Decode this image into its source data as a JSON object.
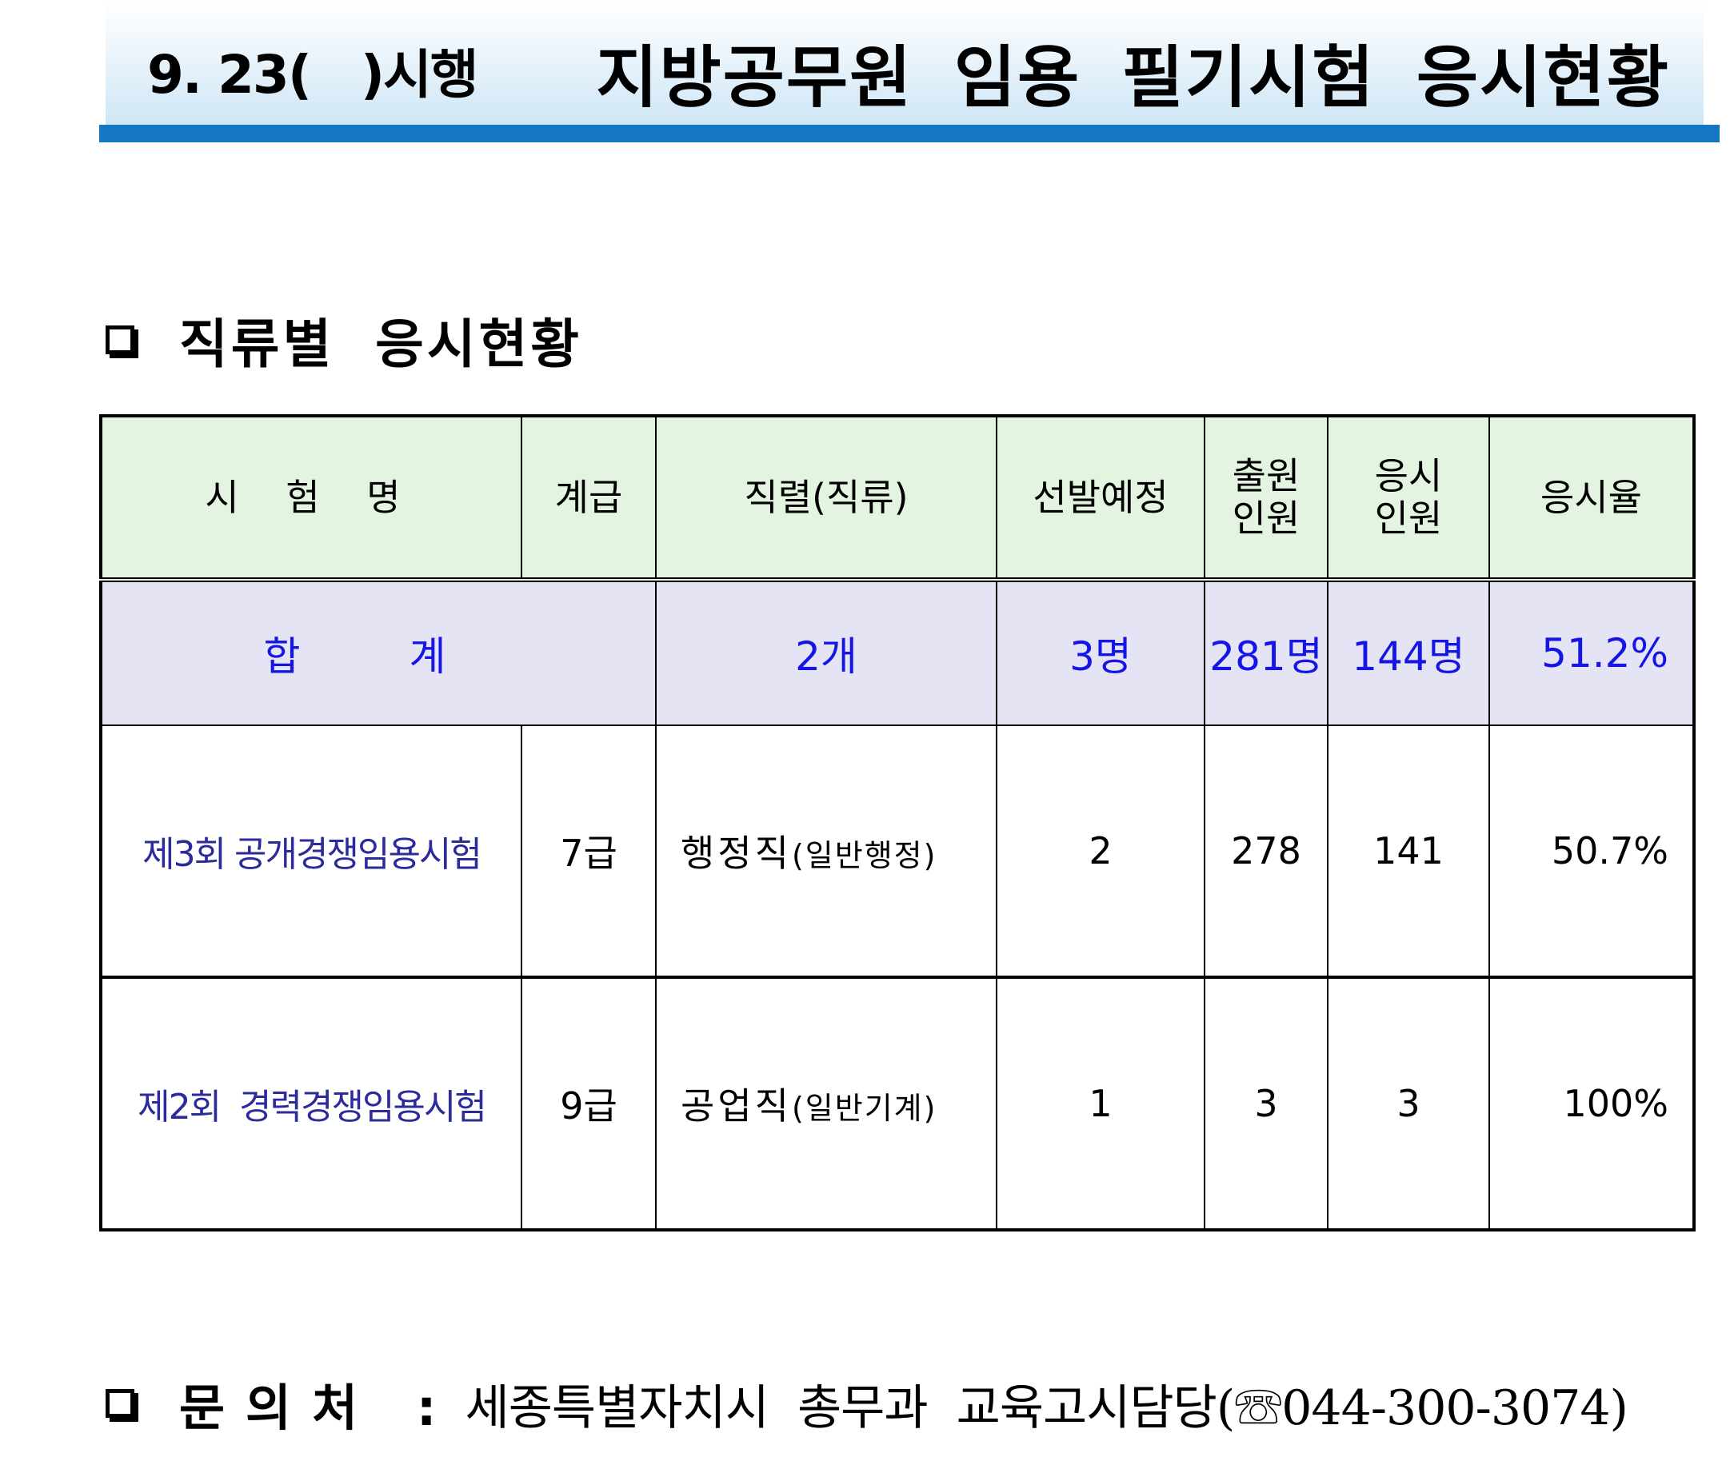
{
  "header": {
    "date": "9. 23(   )시행",
    "title": "지방공무원 임용 필기시험 응시현황"
  },
  "section": {
    "title": "직류별 응시현황"
  },
  "table": {
    "columns": {
      "exam": "시 험 명",
      "grade": "계급",
      "job": "직렬(직류)",
      "planned": "선발예정",
      "applicants": "출원 인원",
      "examinees": "응시 인원",
      "rate": "응시율"
    },
    "total": {
      "label": "합 계",
      "job": "2개",
      "planned": "3명",
      "applicants": "281명",
      "examinees": "144명",
      "rate": "51.2%"
    },
    "rows": [
      {
        "exam": "제3회 공개경쟁임용시험",
        "grade": "7급",
        "job_main": "행정직",
        "job_sub": "(일반행정)",
        "planned": "2",
        "applicants": "278",
        "examinees": "141",
        "rate": "50.7%"
      },
      {
        "exam": "제2회  경력경쟁임용시험",
        "grade": "9급",
        "job_main": "공업직",
        "job_sub": "(일반기계)",
        "planned": "1",
        "applicants": "3",
        "examinees": "3",
        "rate": "100%"
      }
    ]
  },
  "contact": {
    "label": "문의처 :",
    "value": "세종특별자치시 총무과 교육고시담당(☏044-300-3074)"
  },
  "colors": {
    "banner_bar": "#1577c1",
    "header_bg": "#e3f4e1",
    "total_bg": "#e4e4f4",
    "total_text": "#1515e6",
    "exam_name_text": "#2b2b9a"
  }
}
